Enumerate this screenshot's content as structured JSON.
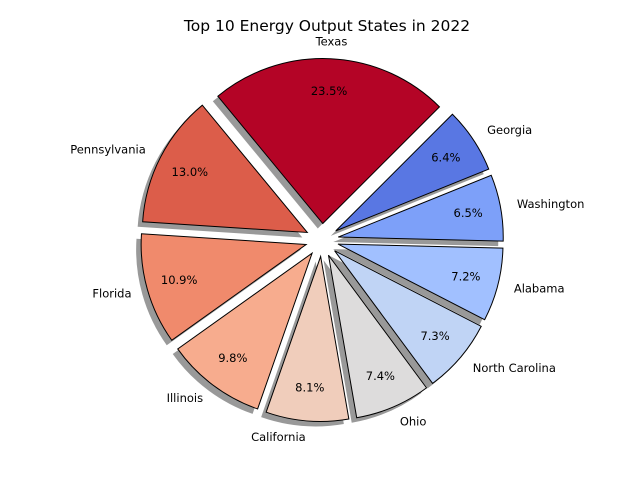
{
  "chart_data": {
    "type": "pie",
    "title": "Top 10 Energy Output States in 2022",
    "categories": [
      "Texas",
      "Pennsylvania",
      "Florida",
      "Illinois",
      "California",
      "Ohio",
      "North Carolina",
      "Alabama",
      "Washington",
      "Georgia"
    ],
    "values": [
      23.5,
      13.0,
      10.9,
      9.8,
      8.1,
      7.4,
      7.3,
      7.2,
      6.5,
      6.4
    ],
    "percent_labels": [
      "23.5%",
      "13.0%",
      "10.9%",
      "9.8%",
      "8.1%",
      "7.4%",
      "7.3%",
      "7.2%",
      "6.5%",
      "6.4%"
    ],
    "colors": [
      "#b40426",
      "#dc5d4a",
      "#f08a6c",
      "#f7ac8e",
      "#f0cdbb",
      "#dddcdc",
      "#c0d4f5",
      "#a1c0ff",
      "#7da0f9",
      "#5977e3"
    ],
    "edge_color": "#000000",
    "shadow": true,
    "exploded": true,
    "legend": "none"
  }
}
